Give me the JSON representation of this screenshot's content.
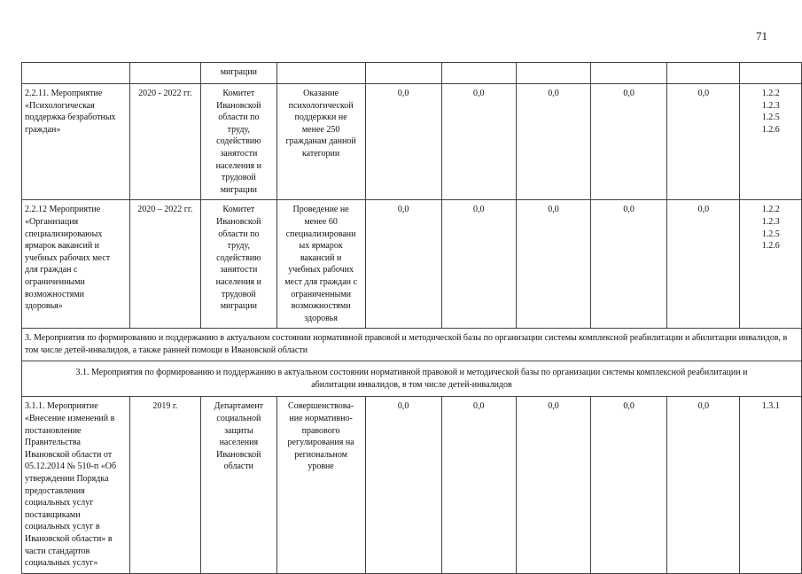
{
  "page_number": "71",
  "carry_row": {
    "executor_tail": "миграции"
  },
  "rows": [
    {
      "name": "2.2.11.       Мероприятие\n«Психологическая\nподдержка безработных\nграждан»",
      "period": "2020 - 2022 гг.",
      "executor": "Комитет\nИвановской\nобласти по\nтруду,\nсодействию\nзанятости\nнаселения и\nтрудовой\nмиграции",
      "result": "Оказание\nпсихологической\nподдержки не\nменее 250\nгражданам данной\nкатегории",
      "values": [
        "0,0",
        "0,0",
        "0,0",
        "0,0",
        "0,0"
      ],
      "indicators": "1.2.2\n1.2.3\n1.2.5\n1.2.6"
    },
    {
      "name": "2.2.12 Мероприятие\n«Организация\nспециализироваюых\nярмарок вакансий и\nучебных рабочих мест\nдля граждан с\nограниченными\nвозможностями\nздоровья»",
      "period": "2020 – 2022 гг.",
      "executor": "Комитет\nИвановской\nобласти по\nтруду,\nсодействию\nзанятости\nнаселения и\nтрудовой\nмиграции",
      "result": "Проведение не\nменее 60\nспециализировани\nых ярмарок\nвакансий и\nучебных рабочих\nмест для граждан с\nограниченными\nвозможностями\nздоровья",
      "values": [
        "0,0",
        "0,0",
        "0,0",
        "0,0",
        "0,0"
      ],
      "indicators": "1.2.2\n1.2.3\n1.2.5\n1.2.6"
    }
  ],
  "section_3": "3. Мероприятия по формированию и поддержанию в актуальном состоянии нормативной правовой и методической базы по организации системы комплексной реабилитации и абилитации инвалидов, в том числе детей-инвалидов, а также ранней помощи в Ивановской области",
  "section_3_1": "3.1. Мероприятия по формированию и поддержанию в актуальном состоянии нормативной правовой и методической базы по организации системы комплексной реабилитации и абилитации инвалидов, в том числе детей-инвалидов",
  "row_3_1_1": {
    "name": "3.1.1. Мероприятие\n«Внесение изменений в\nпостановление\nПравительства\nИвановской области от\n05.12.2014 № 510-п «Об\nутверждении Порядка\nпредоставления\nсоциальных услуг\nпоставщиками\nсоциальных услуг в\nИвановской области» в\nчасти стандартов\nсоциальных услуг»",
    "period": "2019 г.",
    "executor": "Департамент\nсоциальной\nзащиты\nнаселения\nИвановской\nобласти",
    "result": "Совершенствова-\nние нормативно-\nправового\nрегулирования на\nрегиональном\nуровне",
    "values": [
      "0,0",
      "0,0",
      "0,0",
      "0,0",
      "0,0"
    ],
    "indicators": "1.3.1"
  }
}
